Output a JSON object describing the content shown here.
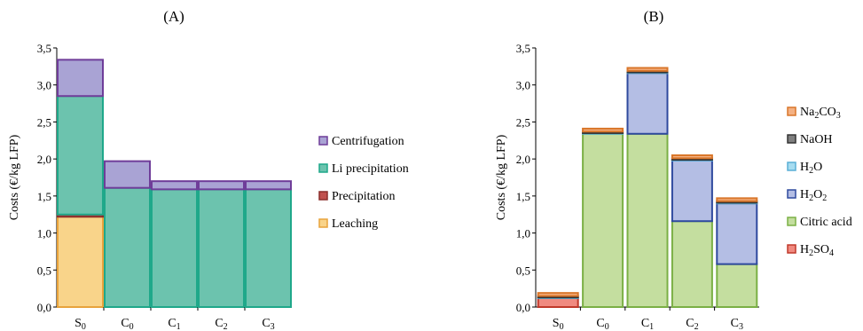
{
  "chart_data": [
    {
      "type": "bar",
      "stacked": true,
      "title": "(A)",
      "xlabel": "",
      "ylabel": "Costs (€/kg LFP)",
      "ylim": [
        0,
        3.5
      ],
      "yticks": [
        "0,0",
        "0,5",
        "1,0",
        "1,5",
        "2,0",
        "2,5",
        "3,0",
        "3,5"
      ],
      "categories": [
        "S0",
        "C0",
        "C1",
        "C2",
        "C3"
      ],
      "category_display": [
        {
          "base": "S",
          "sub": "0"
        },
        {
          "base": "C",
          "sub": "0"
        },
        {
          "base": "C",
          "sub": "1"
        },
        {
          "base": "C",
          "sub": "2"
        },
        {
          "base": "C",
          "sub": "3"
        }
      ],
      "legend_position": "right",
      "series": [
        {
          "name": "Leaching",
          "fill": "#F9D48A",
          "stroke": "#E8A33C",
          "values": [
            1.22,
            0.0,
            0.0,
            0.0,
            0.0
          ]
        },
        {
          "name": "Precipitation",
          "fill": "#C0504D",
          "stroke": "#8B2E2B",
          "values": [
            0.03,
            0.0,
            0.0,
            0.0,
            0.0
          ]
        },
        {
          "name": "Li precipitation",
          "fill": "#6CC3AE",
          "stroke": "#1FA88A",
          "values": [
            1.6,
            1.61,
            1.59,
            1.59,
            1.59
          ]
        },
        {
          "name": "Centrifugation",
          "fill": "#A9A3D4",
          "stroke": "#6F3D99",
          "values": [
            0.49,
            0.36,
            0.11,
            0.11,
            0.11
          ]
        }
      ]
    },
    {
      "type": "bar",
      "stacked": true,
      "title": "(B)",
      "xlabel": "",
      "ylabel": "Costs (€/kg LFP)",
      "ylim": [
        0,
        3.5
      ],
      "yticks": [
        "0,0",
        "0,5",
        "1,0",
        "1,5",
        "2,0",
        "2,5",
        "3,0",
        "3,5"
      ],
      "categories": [
        "S0",
        "C0",
        "C1",
        "C2",
        "C3"
      ],
      "category_display": [
        {
          "base": "S",
          "sub": "0"
        },
        {
          "base": "C",
          "sub": "0"
        },
        {
          "base": "C",
          "sub": "1"
        },
        {
          "base": "C",
          "sub": "2"
        },
        {
          "base": "C",
          "sub": "3"
        }
      ],
      "legend_position": "right",
      "series": [
        {
          "name": "H2SO4",
          "fill": "#F08A80",
          "stroke": "#C0392B",
          "values": [
            0.12,
            0.0,
            0.0,
            0.0,
            0.0
          ]
        },
        {
          "name": "Citric acid",
          "fill": "#C4DE9F",
          "stroke": "#7BB045",
          "values": [
            0.0,
            2.34,
            2.34,
            1.16,
            0.58
          ]
        },
        {
          "name": "H2O2",
          "fill": "#B4BEE4",
          "stroke": "#2F4A9E",
          "values": [
            0.0,
            0.0,
            0.82,
            0.82,
            0.82
          ]
        },
        {
          "name": "H2O",
          "fill": "#A6DCF0",
          "stroke": "#5AAFD6",
          "values": [
            0.01,
            0.01,
            0.01,
            0.01,
            0.01
          ]
        },
        {
          "name": "NaOH",
          "fill": "#7F7F7F",
          "stroke": "#333333",
          "values": [
            0.02,
            0.02,
            0.02,
            0.02,
            0.02
          ]
        },
        {
          "name": "Na2CO3",
          "fill": "#F4B183",
          "stroke": "#D9762A",
          "values": [
            0.04,
            0.04,
            0.04,
            0.04,
            0.04
          ]
        }
      ],
      "legend_display": [
        {
          "parts": [
            [
              "Na",
              ""
            ],
            [
              "2",
              "sub"
            ],
            [
              "CO",
              ""
            ],
            [
              "3",
              "sub"
            ]
          ]
        },
        {
          "parts": [
            [
              "NaOH",
              ""
            ]
          ]
        },
        {
          "parts": [
            [
              "H",
              ""
            ],
            [
              "2",
              "sub"
            ],
            [
              "O",
              ""
            ]
          ]
        },
        {
          "parts": [
            [
              "H",
              ""
            ],
            [
              "2",
              "sub"
            ],
            [
              "O",
              ""
            ],
            [
              "2",
              "sub"
            ]
          ]
        },
        {
          "parts": [
            [
              "Citric acid",
              ""
            ]
          ]
        },
        {
          "parts": [
            [
              "H",
              ""
            ],
            [
              "2",
              "sub"
            ],
            [
              "SO",
              ""
            ],
            [
              "4",
              "sub"
            ]
          ]
        }
      ]
    }
  ]
}
